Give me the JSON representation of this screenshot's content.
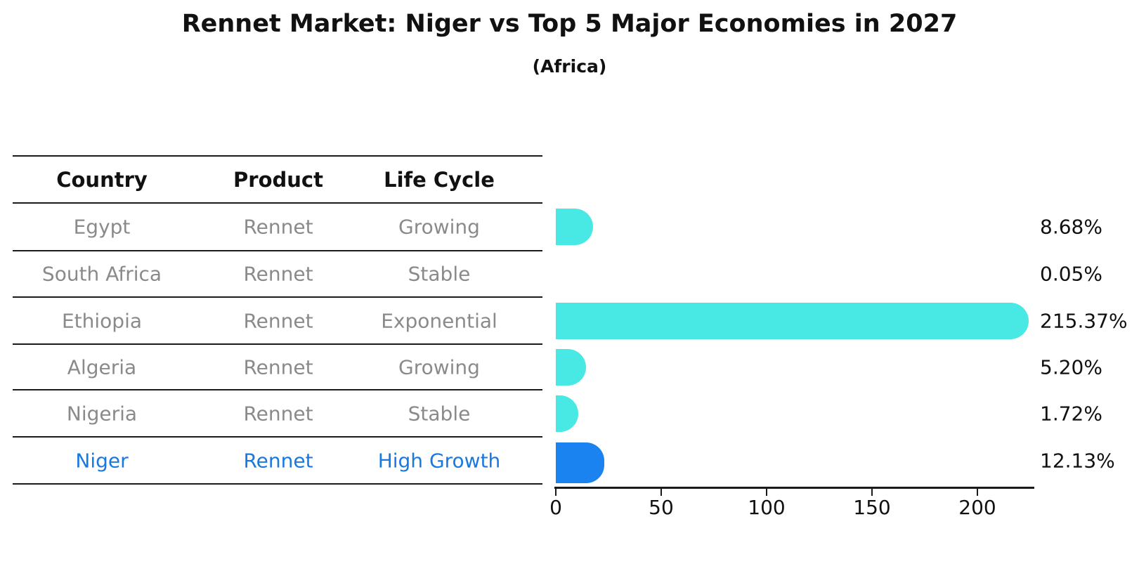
{
  "title": "Rennet Market: Niger vs Top 5 Major Economies in 2027",
  "subtitle": "(Africa)",
  "table": {
    "headers": [
      "Country",
      "Product",
      "Life Cycle"
    ],
    "rows": [
      {
        "country": "Egypt",
        "product": "Rennet",
        "life_cycle": "Growing",
        "value": 8.68,
        "label": "8.68%",
        "highlight": false
      },
      {
        "country": "South Africa",
        "product": "Rennet",
        "life_cycle": "Stable",
        "value": 0.05,
        "label": "0.05%",
        "highlight": false
      },
      {
        "country": "Ethiopia",
        "product": "Rennet",
        "life_cycle": "Exponential",
        "value": 215.37,
        "label": "215.37%",
        "highlight": false
      },
      {
        "country": "Algeria",
        "product": "Rennet",
        "life_cycle": "Growing",
        "value": 5.2,
        "label": "5.20%",
        "highlight": false
      },
      {
        "country": "Nigeria",
        "product": "Rennet",
        "life_cycle": "Stable",
        "value": 1.72,
        "label": "1.72%",
        "highlight": false
      },
      {
        "country": "Niger",
        "product": "Rennet",
        "life_cycle": "High Growth",
        "value": 12.13,
        "label": "12.13%",
        "highlight": true
      }
    ]
  },
  "chart_data": {
    "type": "bar",
    "orientation": "horizontal",
    "title": "Rennet Market: Niger vs Top 5 Major Economies in 2027",
    "subtitle": "(Africa)",
    "categories": [
      "Egypt",
      "South Africa",
      "Ethiopia",
      "Algeria",
      "Nigeria",
      "Niger"
    ],
    "values": [
      8.68,
      0.05,
      215.37,
      5.2,
      1.72,
      12.13
    ],
    "value_labels": [
      "8.68%",
      "0.05%",
      "215.37%",
      "5.20%",
      "1.72%",
      "12.13%"
    ],
    "x_ticks": [
      0,
      50,
      100,
      150,
      200
    ],
    "xlim": [
      0,
      227
    ],
    "grid": false,
    "legend": false,
    "bar_color": "#48e8e4",
    "highlight_index": 5,
    "highlight_color": "#1b83f0",
    "highlight_text_color": "#1a79e0",
    "body_text_color": "#8a8a8a"
  }
}
